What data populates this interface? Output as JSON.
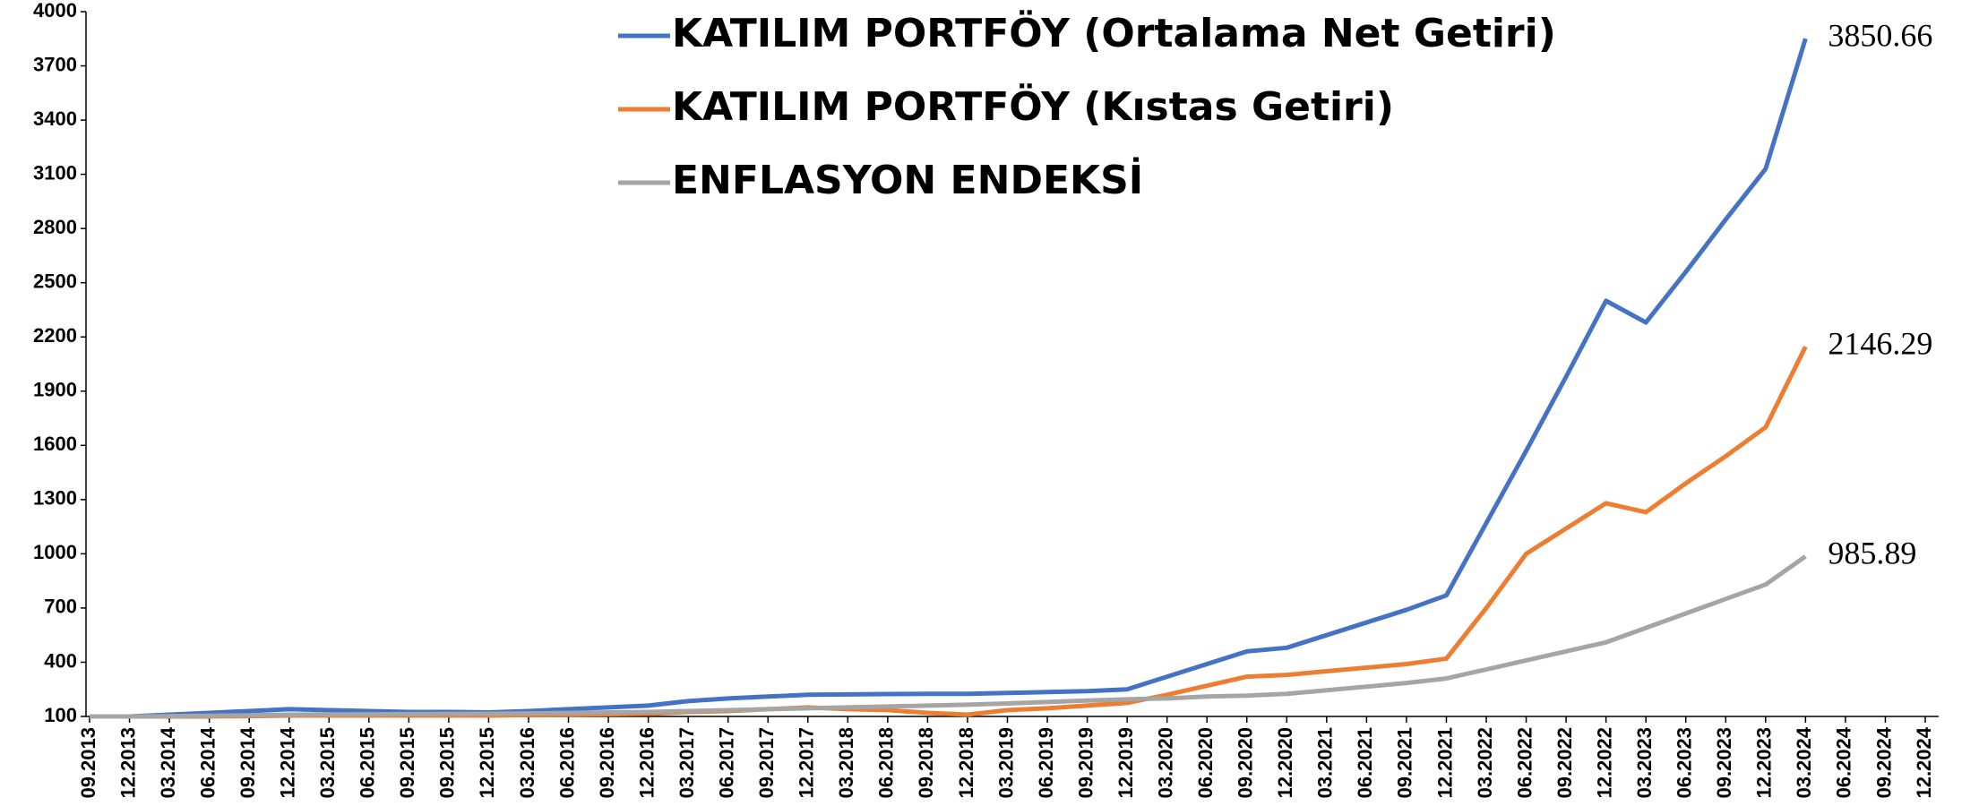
{
  "chart_data": {
    "type": "line",
    "categories": [
      "09.2013",
      "12.2013",
      "03.2014",
      "06.2014",
      "09.2014",
      "12.2014",
      "03.2015",
      "06.2015",
      "09.2015",
      "09.2015",
      "12.2015",
      "03.2016",
      "06.2016",
      "09.2016",
      "12.2016",
      "03.2017",
      "06.2017",
      "09.2017",
      "12.2017",
      "03.2018",
      "06.2018",
      "09.2018",
      "12.2018",
      "03.2019",
      "06.2019",
      "09.2019",
      "12.2019",
      "03.2020",
      "06.2020",
      "09.2020",
      "12.2020",
      "03.2021",
      "06.2021",
      "09.2021",
      "12.2021",
      "03.2022",
      "06.2022",
      "09.2022",
      "12.2022",
      "03.2023",
      "06.2023",
      "09.2023",
      "12.2023",
      "03.2024",
      "06.2024",
      "09.2024",
      "12.2024"
    ],
    "series": [
      {
        "name": "KATILIM PORTFÖY (Ortalama Net Getiri)",
        "color": "#4472c4",
        "values": [
          100,
          100,
          110,
          120,
          130,
          140,
          135,
          130,
          125,
          125,
          122,
          130,
          140,
          150,
          160,
          185,
          200,
          210,
          220,
          222,
          224,
          225,
          225,
          230,
          235,
          240,
          250,
          320,
          390,
          460,
          480,
          550,
          620,
          690,
          770,
          1170,
          1570,
          1980,
          2400,
          2280,
          2560,
          2850,
          3130,
          3850.66,
          null,
          null,
          null
        ]
      },
      {
        "name": "KATILIM PORTFÖY (Kıstas Getiri)",
        "color": "#ed7d31",
        "values": [
          100,
          100,
          100,
          100,
          102,
          105,
          105,
          105,
          105,
          105,
          105,
          108,
          110,
          112,
          115,
          125,
          130,
          140,
          150,
          140,
          135,
          120,
          110,
          135,
          145,
          160,
          175,
          220,
          270,
          320,
          330,
          350,
          370,
          390,
          420,
          700,
          1000,
          1140,
          1280,
          1230,
          1390,
          1540,
          1700,
          2146.29,
          null,
          null,
          null
        ]
      },
      {
        "name": "ENFLASYON ENDEKSİ",
        "color": "#a5a5a5",
        "values": [
          100,
          100,
          102,
          104,
          106,
          110,
          111,
          112,
          113,
          114,
          115,
          117,
          119,
          122,
          125,
          130,
          135,
          140,
          145,
          150,
          155,
          160,
          165,
          172,
          180,
          188,
          195,
          200,
          210,
          215,
          225,
          245,
          265,
          285,
          310,
          360,
          410,
          460,
          510,
          590,
          670,
          750,
          830,
          985.89,
          null,
          null,
          null
        ]
      }
    ],
    "ylim": [
      100,
      4000
    ],
    "yticks": [
      100,
      400,
      700,
      1000,
      1300,
      1600,
      1900,
      2200,
      2500,
      2800,
      3100,
      3400,
      3700,
      4000
    ],
    "legend": "top"
  }
}
